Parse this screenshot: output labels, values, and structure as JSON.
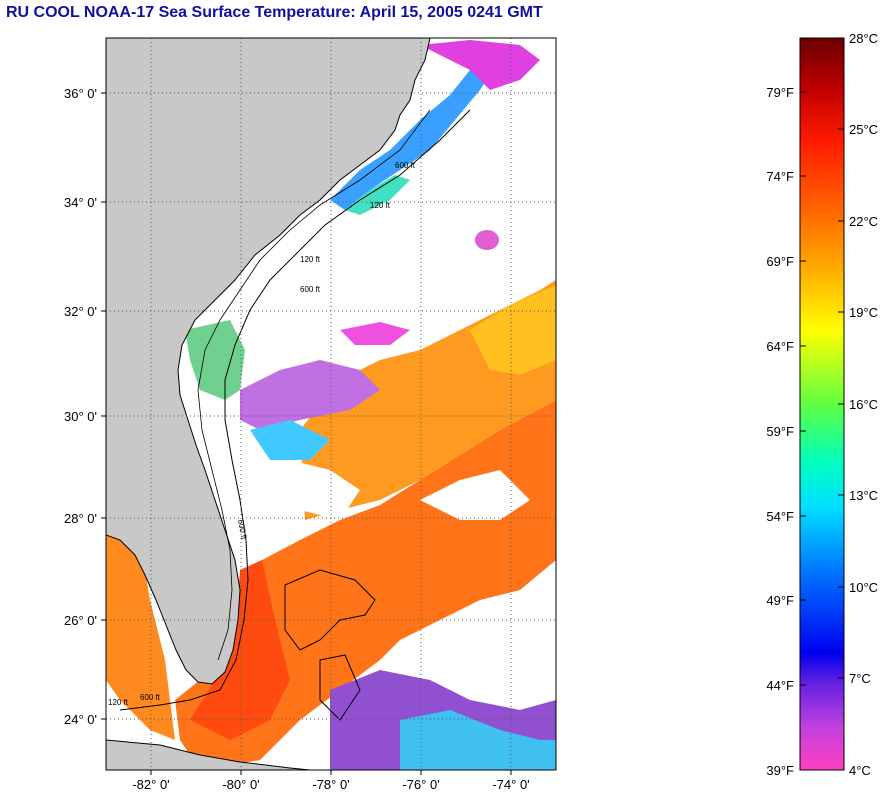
{
  "title": "RU COOL  NOAA-17  Sea Surface Temperature:  April 15, 2005 0241 GMT",
  "map": {
    "lon_range": [
      -83,
      -73
    ],
    "lat_range": [
      23,
      37
    ],
    "lat_ticks": [
      {
        "value": 36,
        "label": "36° 0'"
      },
      {
        "value": 34,
        "label": "34° 0'"
      },
      {
        "value": 32,
        "label": "32° 0'"
      },
      {
        "value": 30,
        "label": "30° 0'"
      },
      {
        "value": 28,
        "label": "28° 0'"
      },
      {
        "value": 26,
        "label": "26° 0'"
      },
      {
        "value": 24,
        "label": "24° 0'"
      }
    ],
    "lon_ticks": [
      {
        "value": -82,
        "label": "-82° 0'"
      },
      {
        "value": -80,
        "label": "-80° 0'"
      },
      {
        "value": -78,
        "label": "-78° 0'"
      },
      {
        "value": -76,
        "label": "-76° 0'"
      },
      {
        "value": -74,
        "label": "-74° 0'"
      }
    ],
    "contour_labels": [
      "600 ft",
      "120 ft",
      "600 ft",
      "120 ft",
      "600 ft",
      "120 ft",
      "600 ft"
    ],
    "colors": {
      "land": "#c8c8c8",
      "cloud": "#ffffff",
      "grid": "#555555"
    }
  },
  "colorbar": {
    "celsius_labels": [
      "28°C",
      "25°C",
      "22°C",
      "19°C",
      "16°C",
      "13°C",
      "10°C",
      "7°C",
      "4°C"
    ],
    "fahrenheit_labels": [
      "79°F",
      "74°F",
      "69°F",
      "64°F",
      "59°F",
      "54°F",
      "49°F",
      "44°F",
      "39°F"
    ],
    "celsius_range": [
      4,
      28
    ],
    "fahrenheit_values": [
      79,
      74,
      69,
      64,
      59,
      54,
      49,
      44,
      39
    ]
  }
}
